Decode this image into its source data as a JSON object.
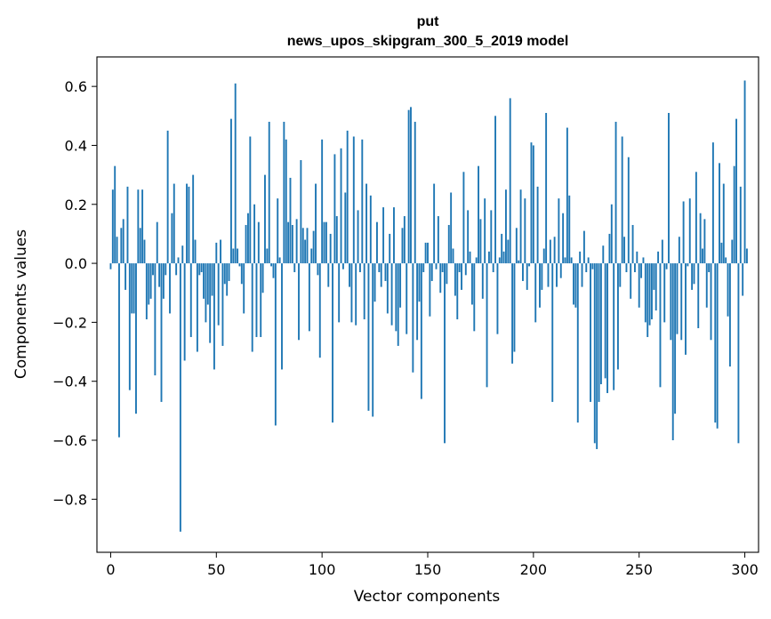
{
  "chart_data": {
    "type": "bar",
    "title": "put",
    "subtitle": "news_upos_skipgram_300_5_2019 model",
    "xlabel": "Vector components",
    "ylabel": "Components values",
    "xlim": [
      -6.5,
      306.5
    ],
    "ylim": [
      -0.98,
      0.7
    ],
    "x_ticks": [
      0,
      50,
      100,
      150,
      200,
      250,
      300
    ],
    "y_ticks": [
      -0.8,
      -0.6,
      -0.4,
      -0.2,
      0.0,
      0.2,
      0.4,
      0.6
    ],
    "x_tick_labels": [
      "0",
      "50",
      "100",
      "150",
      "200",
      "250",
      "300"
    ],
    "y_tick_labels": [
      "−0.8",
      "−0.6",
      "−0.4",
      "−0.2",
      "0.0",
      "0.2",
      "0.4",
      "0.6"
    ],
    "bar_color": "#1f77b4",
    "grid": false,
    "values": [
      -0.02,
      0.25,
      0.33,
      0.09,
      -0.59,
      0.12,
      0.15,
      -0.09,
      0.26,
      -0.43,
      -0.17,
      -0.17,
      -0.51,
      0.25,
      0.12,
      0.25,
      0.08,
      -0.19,
      -0.14,
      -0.12,
      -0.04,
      -0.38,
      0.14,
      -0.08,
      -0.47,
      -0.12,
      -0.04,
      0.45,
      -0.17,
      0.17,
      0.27,
      -0.04,
      0.02,
      -0.91,
      0.06,
      -0.33,
      0.27,
      0.26,
      -0.25,
      0.3,
      0.08,
      -0.3,
      -0.04,
      -0.03,
      -0.12,
      -0.2,
      -0.14,
      -0.27,
      -0.11,
      -0.36,
      0.07,
      -0.21,
      0.08,
      -0.28,
      -0.07,
      -0.11,
      -0.06,
      0.49,
      0.05,
      0.61,
      0.05,
      -0.01,
      -0.07,
      -0.17,
      0.13,
      0.17,
      0.43,
      -0.3,
      0.2,
      -0.25,
      0.14,
      -0.25,
      -0.1,
      0.3,
      0.05,
      0.48,
      -0.01,
      -0.05,
      -0.55,
      0.22,
      0.02,
      -0.36,
      0.48,
      0.42,
      0.14,
      0.29,
      0.13,
      -0.03,
      0.15,
      -0.26,
      0.35,
      0.12,
      0.08,
      0.12,
      -0.23,
      0.05,
      0.11,
      0.27,
      -0.04,
      -0.32,
      0.42,
      0.14,
      0.14,
      -0.08,
      0.1,
      -0.54,
      0.37,
      0.16,
      -0.2,
      0.39,
      -0.02,
      0.24,
      0.45,
      -0.08,
      -0.2,
      0.43,
      -0.21,
      0.18,
      -0.03,
      0.42,
      -0.19,
      0.27,
      -0.5,
      0.23,
      -0.52,
      -0.13,
      0.14,
      -0.03,
      -0.08,
      0.19,
      -0.06,
      -0.17,
      0.1,
      -0.21,
      0.19,
      -0.23,
      -0.28,
      -0.15,
      0.12,
      0.16,
      -0.24,
      0.52,
      0.53,
      -0.37,
      0.48,
      -0.26,
      -0.13,
      -0.46,
      -0.03,
      0.07,
      0.07,
      -0.18,
      -0.06,
      0.27,
      -0.02,
      0.16,
      -0.1,
      -0.03,
      -0.61,
      -0.07,
      0.13,
      0.24,
      0.05,
      -0.11,
      -0.19,
      -0.03,
      -0.09,
      0.31,
      -0.04,
      0.18,
      0.04,
      -0.14,
      -0.23,
      0.02,
      0.33,
      0.15,
      -0.12,
      0.22,
      -0.42,
      0.04,
      0.18,
      -0.03,
      0.5,
      -0.24,
      0.02,
      0.1,
      0.04,
      0.25,
      0.08,
      0.56,
      -0.34,
      -0.3,
      0.12,
      0.01,
      0.25,
      -0.06,
      0.22,
      -0.09,
      -0.01,
      0.41,
      0.4,
      -0.2,
      0.26,
      -0.15,
      -0.09,
      0.05,
      0.51,
      -0.08,
      0.08,
      -0.47,
      0.09,
      -0.08,
      0.22,
      -0.05,
      0.17,
      0.02,
      0.46,
      0.23,
      0.02,
      -0.14,
      -0.15,
      -0.54,
      0.04,
      -0.08,
      0.11,
      -0.03,
      0.02,
      -0.47,
      -0.02,
      -0.61,
      -0.63,
      -0.47,
      -0.41,
      0.06,
      -0.39,
      -0.44,
      0.1,
      0.2,
      -0.43,
      0.48,
      -0.36,
      -0.08,
      0.43,
      0.09,
      -0.03,
      0.36,
      -0.12,
      0.13,
      -0.03,
      0.04,
      -0.15,
      -0.05,
      0.02,
      -0.2,
      -0.25,
      -0.21,
      -0.19,
      -0.09,
      -0.16,
      0.04,
      -0.42,
      0.08,
      -0.2,
      -0.02,
      0.51,
      -0.26,
      -0.6,
      -0.51,
      -0.24,
      0.09,
      -0.26,
      0.21,
      -0.31,
      -0.01,
      0.22,
      -0.09,
      -0.07,
      0.31,
      -0.22,
      0.17,
      0.05,
      0.15,
      -0.15,
      -0.03,
      -0.26,
      0.41,
      -0.54,
      -0.56,
      0.34,
      0.07,
      0.27,
      0.02,
      -0.18,
      -0.35,
      0.08,
      0.33,
      0.49,
      -0.61,
      0.26,
      -0.11,
      0.62,
      0.05
    ]
  }
}
